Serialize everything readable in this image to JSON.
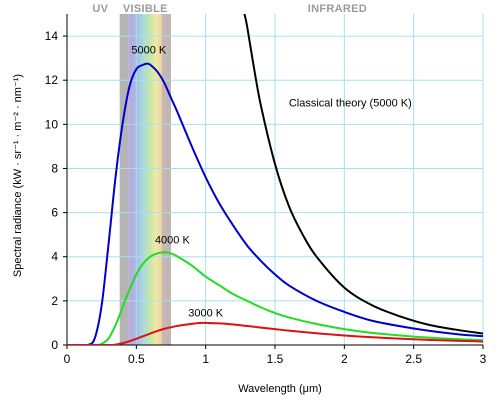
{
  "chart_data": {
    "type": "line",
    "title": "",
    "xlabel": "Wavelength (μm)",
    "ylabel": "Spectral radiance (kW · sr⁻¹ · m⁻² · nm⁻¹)",
    "xlim": [
      0,
      3
    ],
    "ylim": [
      0,
      15
    ],
    "xticks": [
      {
        "value": 0,
        "label": "0"
      },
      {
        "value": 0.5,
        "label": "0.5"
      },
      {
        "value": 1,
        "label": "1"
      },
      {
        "value": 1.5,
        "label": "1.5"
      },
      {
        "value": 2,
        "label": "2"
      },
      {
        "value": 2.5,
        "label": "2.5"
      },
      {
        "value": 3,
        "label": "3"
      }
    ],
    "yticks": [
      {
        "value": 0,
        "label": "0"
      },
      {
        "value": 2,
        "label": "2"
      },
      {
        "value": 4,
        "label": "4"
      },
      {
        "value": 6,
        "label": "6"
      },
      {
        "value": 8,
        "label": "8"
      },
      {
        "value": 10,
        "label": "10"
      },
      {
        "value": 12,
        "label": "12"
      },
      {
        "value": 14,
        "label": "14"
      }
    ],
    "grid": true,
    "regions": [
      {
        "label": "UV",
        "x_center": 0.24
      },
      {
        "label": "VISIBLE",
        "x_start": 0.38,
        "x_end": 0.75
      },
      {
        "label": "INFRARED",
        "x_center": 1.95
      }
    ],
    "series": [
      {
        "name": "5000 K",
        "color": "#0000cc",
        "label_at": [
          0.59,
          13.2
        ],
        "x": [
          0.1,
          0.15,
          0.2,
          0.25,
          0.3,
          0.35,
          0.4,
          0.45,
          0.5,
          0.55,
          0.58,
          0.6,
          0.65,
          0.7,
          0.75,
          0.8,
          0.9,
          1.0,
          1.1,
          1.2,
          1.3,
          1.4,
          1.5,
          1.6,
          1.8,
          2.0,
          2.2,
          2.5,
          2.8,
          3.0
        ],
        "y": [
          0.0,
          0.0,
          0.3,
          1.8,
          4.6,
          7.6,
          10.0,
          11.7,
          12.5,
          12.7,
          12.75,
          12.7,
          12.4,
          11.9,
          11.2,
          10.5,
          9.0,
          7.6,
          6.4,
          5.4,
          4.5,
          3.8,
          3.2,
          2.7,
          2.0,
          1.5,
          1.1,
          0.75,
          0.5,
          0.4
        ]
      },
      {
        "name": "4000 K",
        "color": "#22dd22",
        "label_at": [
          0.76,
          4.6
        ],
        "x": [
          0.2,
          0.25,
          0.3,
          0.35,
          0.4,
          0.45,
          0.5,
          0.55,
          0.6,
          0.65,
          0.7,
          0.72,
          0.75,
          0.8,
          0.9,
          1.0,
          1.1,
          1.2,
          1.3,
          1.4,
          1.5,
          1.6,
          1.8,
          2.0,
          2.2,
          2.5,
          2.8,
          3.0
        ],
        "y": [
          0.0,
          0.05,
          0.3,
          0.9,
          1.7,
          2.5,
          3.2,
          3.7,
          4.0,
          4.15,
          4.2,
          4.2,
          4.15,
          4.0,
          3.6,
          3.1,
          2.7,
          2.3,
          2.0,
          1.7,
          1.45,
          1.25,
          0.95,
          0.72,
          0.55,
          0.38,
          0.27,
          0.22
        ]
      },
      {
        "name": "3000 K",
        "color": "#dd1111",
        "label_at": [
          1.0,
          1.3
        ],
        "x": [
          0.3,
          0.35,
          0.4,
          0.45,
          0.5,
          0.55,
          0.6,
          0.65,
          0.7,
          0.8,
          0.9,
          0.97,
          1.0,
          1.1,
          1.2,
          1.3,
          1.4,
          1.5,
          1.6,
          1.8,
          2.0,
          2.2,
          2.5,
          2.8,
          3.0
        ],
        "y": [
          0.0,
          0.02,
          0.08,
          0.17,
          0.28,
          0.4,
          0.52,
          0.63,
          0.73,
          0.87,
          0.96,
          1.0,
          1.0,
          0.98,
          0.93,
          0.86,
          0.79,
          0.72,
          0.65,
          0.53,
          0.43,
          0.35,
          0.26,
          0.19,
          0.16
        ]
      },
      {
        "name": "Classical theory (5000 K)",
        "color": "#000000",
        "label_at": [
          1.6,
          10.8
        ],
        "x": [
          1.28,
          1.3,
          1.35,
          1.4,
          1.5,
          1.6,
          1.7,
          1.8,
          2.0,
          2.2,
          2.4,
          2.6,
          2.8,
          3.0
        ],
        "y": [
          15.0,
          14.4,
          12.5,
          10.8,
          8.2,
          6.3,
          5.0,
          4.0,
          2.6,
          1.8,
          1.3,
          0.93,
          0.7,
          0.52
        ]
      }
    ]
  }
}
